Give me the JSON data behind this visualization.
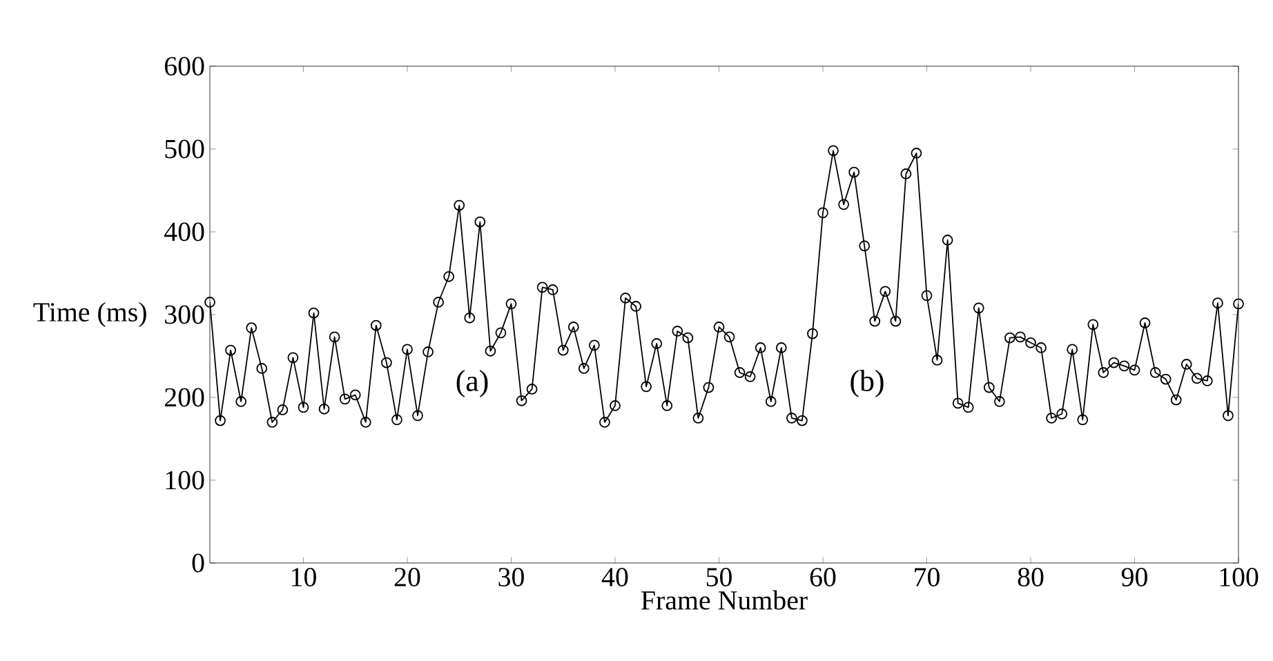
{
  "chart_data": {
    "type": "line",
    "xlabel": "Frame Number",
    "ylabel": "Time (ms)",
    "x": [
      1,
      2,
      3,
      4,
      5,
      6,
      7,
      8,
      9,
      10,
      11,
      12,
      13,
      14,
      15,
      16,
      17,
      18,
      19,
      20,
      21,
      22,
      23,
      24,
      25,
      26,
      27,
      28,
      29,
      30,
      31,
      32,
      33,
      34,
      35,
      36,
      37,
      38,
      39,
      40,
      41,
      42,
      43,
      44,
      45,
      46,
      47,
      48,
      49,
      50,
      51,
      52,
      53,
      54,
      55,
      56,
      57,
      58,
      59,
      60,
      61,
      62,
      63,
      64,
      65,
      66,
      67,
      68,
      69,
      70,
      71,
      72,
      73,
      74,
      75,
      76,
      77,
      78,
      79,
      80,
      81,
      82,
      83,
      84,
      85,
      86,
      87,
      88,
      89,
      90,
      91,
      92,
      93,
      94,
      95,
      96,
      97,
      98,
      99,
      100
    ],
    "series": [
      {
        "color": "#000000",
        "values": [
          315,
          172,
          257,
          195,
          284,
          235,
          170,
          185,
          248,
          188,
          302,
          186,
          273,
          198,
          203,
          170,
          287,
          242,
          173,
          258,
          178,
          255,
          315,
          346,
          432,
          296,
          412,
          256,
          278,
          313,
          196,
          210,
          333,
          330,
          257,
          285,
          235,
          263,
          170,
          190,
          320,
          310,
          213,
          265,
          190,
          280,
          272,
          175,
          212,
          285,
          273,
          230,
          225,
          260,
          195,
          260,
          175,
          172,
          277,
          423,
          498,
          433,
          472,
          383,
          292,
          328,
          292,
          470,
          495,
          323,
          245,
          390,
          193,
          188,
          308,
          212,
          195,
          272,
          273,
          266,
          260,
          175,
          180,
          258,
          173,
          288,
          230,
          242,
          238,
          233,
          290,
          230,
          222,
          197,
          240,
          223,
          220,
          314,
          178,
          313
        ]
      }
    ],
    "xlim": [
      1,
      100
    ],
    "ylim": [
      0,
      600
    ],
    "xticks": [
      10,
      20,
      30,
      40,
      50,
      60,
      70,
      80,
      90,
      100
    ],
    "yticks": [
      0,
      100,
      200,
      300,
      400,
      500,
      600
    ],
    "marker": "circle",
    "line_style": "solid",
    "grid": false,
    "annotations": [
      "(a)",
      "(b)"
    ]
  }
}
